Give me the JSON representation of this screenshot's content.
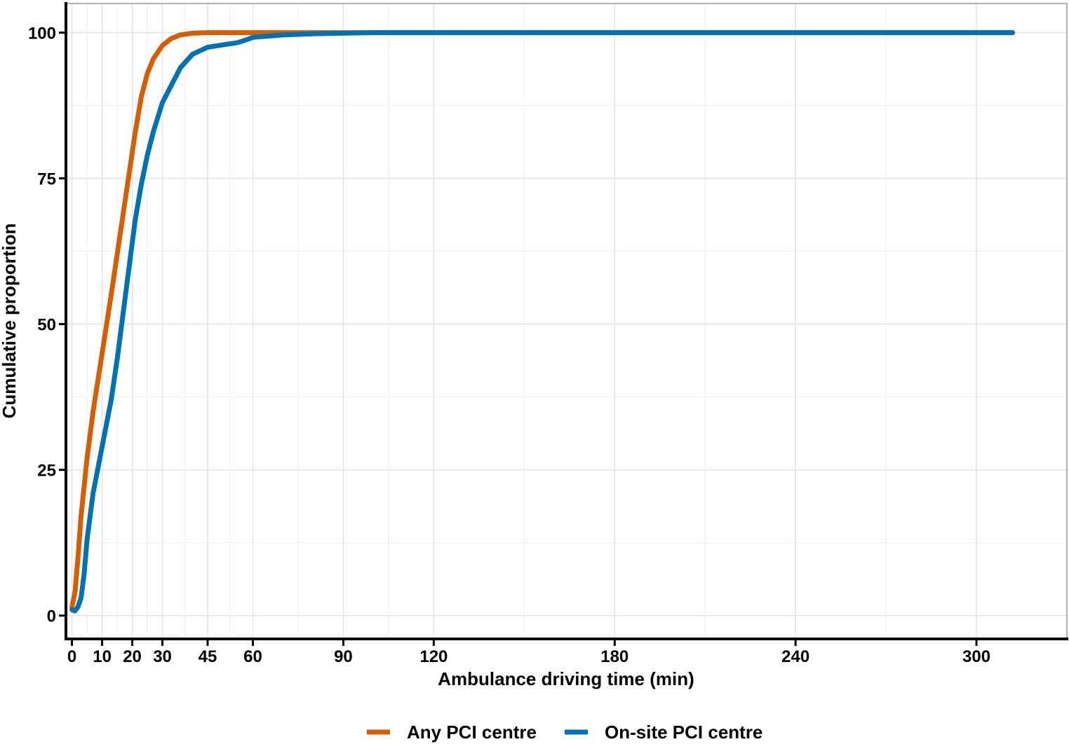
{
  "chart_data": {
    "type": "line",
    "title": "",
    "xlabel": "Ambulance driving time (min)",
    "ylabel": "Cumulative proportion",
    "xlim": [
      -2,
      330
    ],
    "ylim": [
      -4,
      105
    ],
    "x_ticks": [
      0,
      10,
      20,
      30,
      45,
      60,
      90,
      120,
      180,
      240,
      300
    ],
    "y_ticks": [
      0,
      25,
      50,
      75,
      100
    ],
    "grid": true,
    "legend_position": "bottom",
    "series": [
      {
        "name": "Any PCI centre",
        "color": "#D55E00",
        "x": [
          0,
          1,
          2,
          3,
          5,
          7,
          10,
          13,
          15,
          17,
          19,
          21,
          23,
          25,
          27,
          30,
          33,
          36,
          40,
          45,
          50,
          60,
          80,
          100,
          120,
          200,
          312
        ],
        "y": [
          1.5,
          4,
          10,
          17,
          27,
          35,
          45,
          55,
          62,
          69,
          76,
          83,
          89,
          93,
          95.5,
          97.8,
          99,
          99.6,
          99.9,
          100,
          100,
          100,
          100,
          100,
          100,
          100,
          100
        ]
      },
      {
        "name": "On-site PCI centre",
        "color": "#0072B2",
        "x": [
          0,
          1,
          2,
          3,
          4,
          5,
          7,
          10,
          13,
          15,
          17,
          19,
          21,
          23,
          25,
          27,
          30,
          33,
          36,
          40,
          45,
          50,
          55,
          58,
          60,
          65,
          70,
          80,
          90,
          100,
          120,
          200,
          312
        ],
        "y": [
          1,
          0.8,
          1.5,
          3,
          7,
          13,
          21,
          29,
          37,
          44,
          52,
          60,
          68,
          74,
          79,
          83,
          88,
          91,
          94,
          96.3,
          97.5,
          97.9,
          98.3,
          98.8,
          99.2,
          99.4,
          99.6,
          99.8,
          99.9,
          100,
          100,
          100,
          100
        ]
      }
    ]
  }
}
